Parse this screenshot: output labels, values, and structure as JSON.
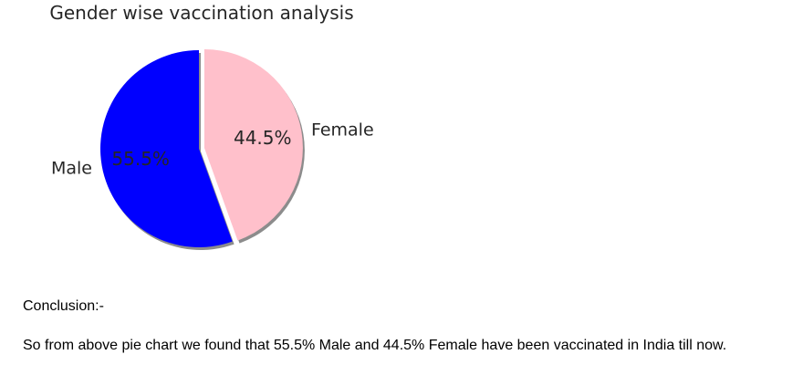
{
  "chart_data": {
    "type": "pie",
    "title": "Gender wise vaccination analysis",
    "slices": [
      {
        "label": "Male",
        "value": 55.5,
        "pct_label": "55.5%",
        "color": "#0000ff"
      },
      {
        "label": "Female",
        "value": 44.5,
        "pct_label": "44.5%",
        "color": "#ffc0cb"
      }
    ],
    "start_angle_deg": 90,
    "shadow": true,
    "exploded": "Female"
  },
  "conclusion": {
    "heading": "Conclusion:-",
    "text": "So from above pie chart we found that 55.5% Male and 44.5% Female have been vaccinated in India till now."
  }
}
